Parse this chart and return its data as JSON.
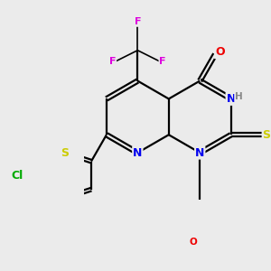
{
  "bg_color": "#ebebeb",
  "atom_colors": {
    "C": "#000000",
    "N": "#0000ee",
    "O": "#ee0000",
    "S": "#cccc00",
    "F": "#dd00dd",
    "Cl": "#00aa00",
    "H": "#888888"
  },
  "bond_color": "#000000",
  "figsize": [
    3.0,
    3.0
  ],
  "dpi": 100
}
